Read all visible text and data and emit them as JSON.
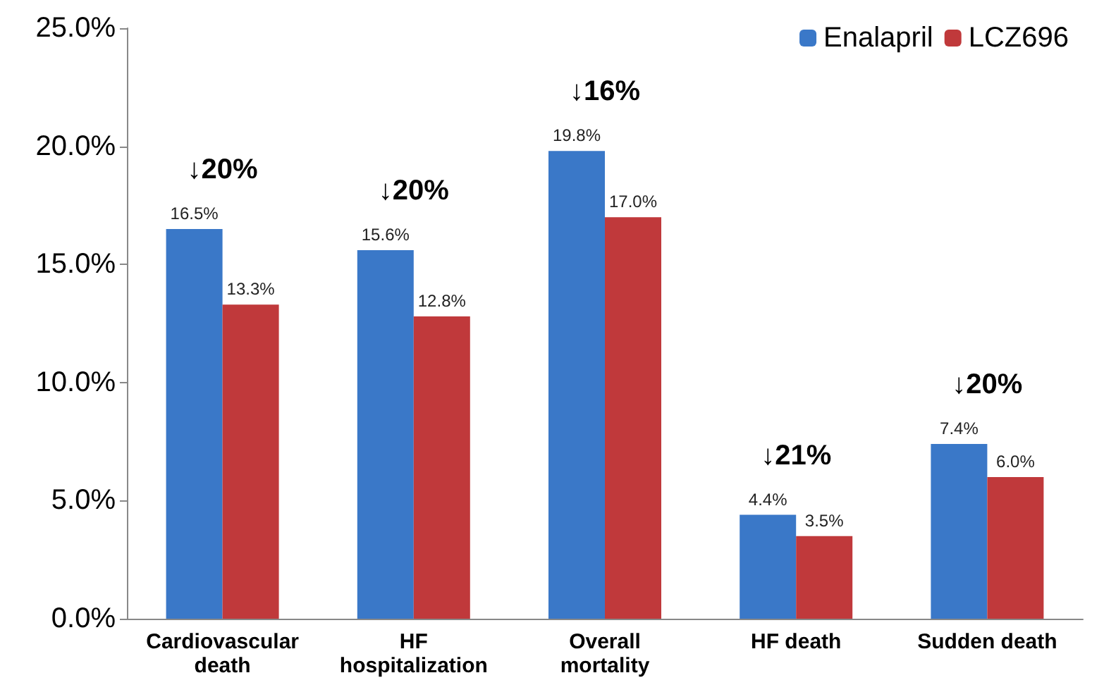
{
  "chart_data": {
    "type": "bar",
    "categories": [
      "Cardiovascular\ndeath",
      "HF\nhospitalization",
      "Overall\nmortality",
      "HF death",
      "Sudden death"
    ],
    "series": [
      {
        "name": "Enalapril",
        "color": "#3a78c8",
        "values": [
          16.5,
          15.6,
          19.8,
          4.4,
          7.4
        ],
        "value_labels": [
          "16.5%",
          "15.6%",
          "19.8%",
          "4.4%",
          "7.4%"
        ]
      },
      {
        "name": "LCZ696",
        "color": "#c0393b",
        "values": [
          13.3,
          12.8,
          17.0,
          3.5,
          6.0
        ],
        "value_labels": [
          "13.3%",
          "12.8%",
          "17.0%",
          "3.5%",
          "6.0%"
        ]
      }
    ],
    "ylim": [
      0,
      25
    ],
    "yticks": [
      {
        "value": 0,
        "label": "0.0%"
      },
      {
        "value": 5,
        "label": "5.0%"
      },
      {
        "value": 10,
        "label": "10.0%"
      },
      {
        "value": 15,
        "label": "15.0%"
      },
      {
        "value": 20,
        "label": "20.0%"
      },
      {
        "value": 25,
        "label": "25.0%"
      }
    ],
    "annotations": [
      "↓20%",
      "↓20%",
      "↓16%",
      "↓21%",
      "↓20%"
    ],
    "legend": "top right",
    "grid": false
  }
}
